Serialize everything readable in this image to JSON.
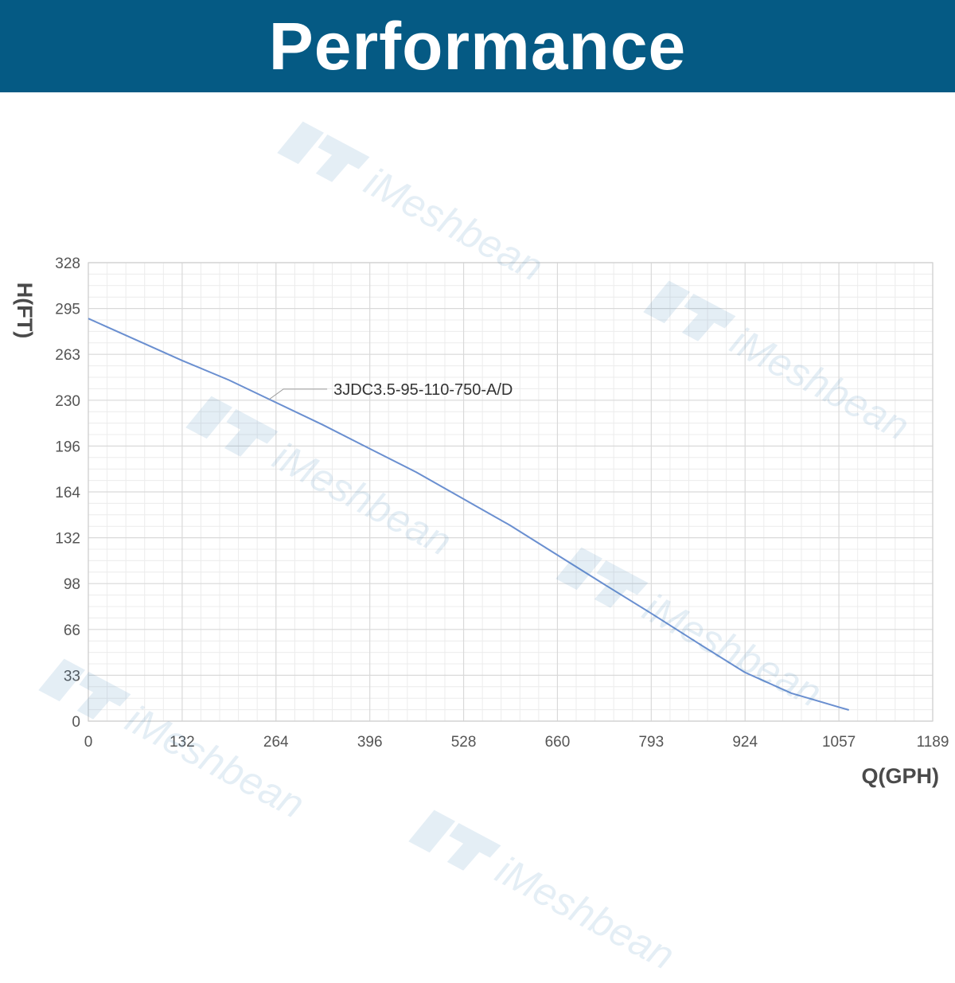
{
  "header": {
    "title": "Performance"
  },
  "watermark": {
    "text": "iMeshbean"
  },
  "colors": {
    "banner": "#055a84",
    "curve": "#6a8fd0",
    "grid": "#d9d9d9",
    "axis_text": "#555555"
  },
  "chart_data": {
    "type": "line",
    "xlabel": "Q(GPH)",
    "ylabel": "H(FT)",
    "xlim": [
      0,
      1189
    ],
    "ylim": [
      0,
      328
    ],
    "xticks": [
      "0",
      "132",
      "264",
      "396",
      "528",
      "660",
      "793",
      "924",
      "1057",
      "1189"
    ],
    "yticks": [
      "0",
      "33",
      "66",
      "98",
      "132",
      "164",
      "196",
      "230",
      "263",
      "295",
      "328"
    ],
    "grid": true,
    "series": [
      {
        "name": "3JDC3.5-95-110-750-A/D",
        "x": [
          0,
          66,
          132,
          198,
          264,
          330,
          396,
          462,
          528,
          594,
          660,
          726,
          793,
          858,
          924,
          990,
          1057,
          1071
        ],
        "y": [
          288,
          273,
          258,
          244,
          228,
          212,
          195,
          178,
          159,
          140,
          119,
          98,
          77,
          56,
          35,
          20,
          10,
          8
        ]
      }
    ],
    "annotations": [
      {
        "text": "3JDC3.5-95-110-750-A/D",
        "x": 250,
        "y": 229
      }
    ]
  }
}
